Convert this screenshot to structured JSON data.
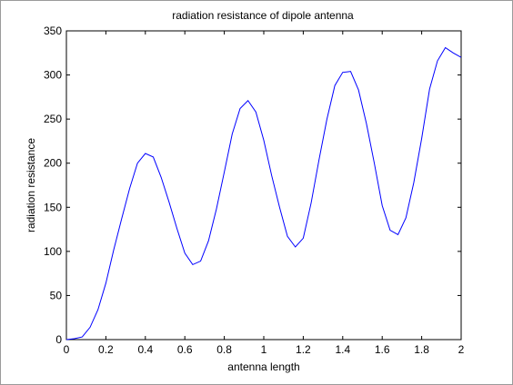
{
  "chart_data": {
    "type": "line",
    "title": "radiation resistance of dipole antenna",
    "xlabel": "antenna length",
    "ylabel": "radiation resistance",
    "xlim": [
      0,
      2
    ],
    "ylim": [
      0,
      350
    ],
    "xticks": [
      0,
      0.2,
      0.4,
      0.6,
      0.8,
      1,
      1.2,
      1.4,
      1.6,
      1.8,
      2
    ],
    "xtick_labels": [
      "0",
      "0.2",
      "0.4",
      "0.6",
      "0.8",
      "1",
      "1.2",
      "1.4",
      "1.6",
      "1.8",
      "2"
    ],
    "yticks": [
      0,
      50,
      100,
      150,
      200,
      250,
      300,
      350
    ],
    "ytick_labels": [
      "0",
      "50",
      "100",
      "150",
      "200",
      "250",
      "300",
      "350"
    ],
    "grid": false,
    "legend": "none",
    "colors": {
      "line": "#0000ff",
      "axes": "#000000",
      "background": "#ffffff"
    },
    "series": [
      {
        "x": [
          0,
          0.04,
          0.08,
          0.12,
          0.16,
          0.2,
          0.24,
          0.28,
          0.32,
          0.36,
          0.4,
          0.44,
          0.48,
          0.52,
          0.56,
          0.6,
          0.64,
          0.68,
          0.72,
          0.76,
          0.8,
          0.84,
          0.88,
          0.92,
          0.96,
          1.0,
          1.04,
          1.08,
          1.12,
          1.16,
          1.2,
          1.24,
          1.28,
          1.32,
          1.36,
          1.4,
          1.44,
          1.48,
          1.52,
          1.56,
          1.6,
          1.64,
          1.68,
          1.72,
          1.76,
          1.8,
          1.84,
          1.88,
          1.92,
          1.96,
          2.0
        ],
        "values": [
          0,
          1,
          3,
          14,
          34,
          64,
          102,
          137,
          171,
          200,
          211,
          207,
          184,
          156,
          126,
          98,
          85,
          89,
          112,
          148,
          190,
          233,
          262,
          271,
          258,
          226,
          186,
          150,
          117,
          105,
          115,
          155,
          204,
          250,
          288,
          303,
          304,
          283,
          245,
          200,
          152,
          124,
          119,
          138,
          178,
          228,
          284,
          316,
          331,
          325,
          320
        ]
      }
    ]
  }
}
